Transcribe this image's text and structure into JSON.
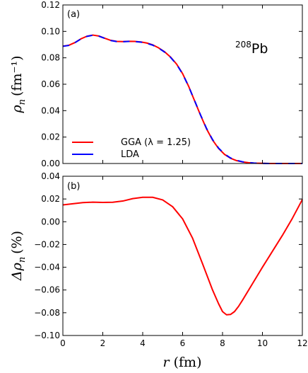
{
  "chart_data": [
    {
      "type": "line",
      "panel_label": "(a)",
      "annotation_sup": "208",
      "annotation_main": "Pb",
      "ylabel_sym": "ρ",
      "ylabel_sub": "n",
      "ylabel_unit": "(fm⁻¹)",
      "xlim": [
        0,
        12
      ],
      "ylim": [
        0,
        0.12
      ],
      "x_ticks": [
        "0",
        "2",
        "4",
        "6",
        "8",
        "10",
        "12"
      ],
      "y_ticks": [
        "0.00",
        "0.02",
        "0.04",
        "0.06",
        "0.08",
        "0.10",
        "0.12"
      ],
      "legend_position": "lower-left",
      "series": [
        {
          "name": "GGA (λ = 1.25)",
          "color": "#ff0000",
          "x": [
            0,
            0.3,
            0.6,
            0.9,
            1.2,
            1.5,
            1.8,
            2.1,
            2.4,
            2.7,
            3.0,
            3.3,
            3.6,
            3.9,
            4.2,
            4.5,
            4.8,
            5.1,
            5.4,
            5.7,
            6.0,
            6.3,
            6.6,
            6.9,
            7.2,
            7.5,
            7.8,
            8.1,
            8.4,
            8.7,
            9.0,
            9.3,
            9.6,
            10.0,
            10.5,
            11.0,
            12.0
          ],
          "values": [
            0.0888,
            0.0895,
            0.0915,
            0.0943,
            0.0963,
            0.0972,
            0.0965,
            0.0948,
            0.0932,
            0.0924,
            0.0923,
            0.0925,
            0.0924,
            0.092,
            0.0912,
            0.0898,
            0.0875,
            0.0845,
            0.0805,
            0.0752,
            0.068,
            0.0585,
            0.0475,
            0.0365,
            0.0262,
            0.0178,
            0.0114,
            0.0069,
            0.004,
            0.0022,
            0.0012,
            0.0006,
            0.0003,
            0.0001,
            0.0,
            0.0,
            0.0
          ]
        },
        {
          "name": "LDA",
          "color": "#0000ff",
          "x": [
            0,
            0.3,
            0.6,
            0.9,
            1.2,
            1.5,
            1.8,
            2.1,
            2.4,
            2.7,
            3.0,
            3.3,
            3.6,
            3.9,
            4.2,
            4.5,
            4.8,
            5.1,
            5.4,
            5.7,
            6.0,
            6.3,
            6.6,
            6.9,
            7.2,
            7.5,
            7.8,
            8.1,
            8.4,
            8.7,
            9.0,
            9.3,
            9.6,
            10.0,
            10.5,
            11.0,
            12.0
          ],
          "values": [
            0.0887,
            0.0894,
            0.0914,
            0.0942,
            0.0962,
            0.0971,
            0.0964,
            0.0947,
            0.0931,
            0.0923,
            0.0922,
            0.0924,
            0.0923,
            0.0919,
            0.091,
            0.0896,
            0.0873,
            0.0843,
            0.0803,
            0.075,
            0.0678,
            0.0584,
            0.0476,
            0.0367,
            0.0265,
            0.0181,
            0.0117,
            0.0072,
            0.0042,
            0.0024,
            0.0013,
            0.0007,
            0.0003,
            0.0001,
            0.0,
            0.0,
            0.0
          ]
        }
      ]
    },
    {
      "type": "line",
      "panel_label": "(b)",
      "ylabel_sym": "Δρ",
      "ylabel_sub": "n",
      "ylabel_unit": "(%)",
      "xlabel_sym": "r",
      "xlabel_unit": "(fm)",
      "xlim": [
        0,
        12
      ],
      "ylim": [
        -0.1,
        0.04
      ],
      "x_ticks": [
        "0",
        "2",
        "4",
        "6",
        "8",
        "10",
        "12"
      ],
      "y_ticks": [
        "−0.10",
        "−0.08",
        "−0.06",
        "−0.04",
        "−0.02",
        "0.00",
        "0.02",
        "0.04"
      ],
      "series": [
        {
          "color": "#ff0000",
          "x": [
            0,
            0.5,
            1.0,
            1.5,
            2.0,
            2.5,
            3.0,
            3.5,
            4.0,
            4.5,
            5.0,
            5.5,
            6.0,
            6.5,
            7.0,
            7.5,
            7.8,
            8.0,
            8.2,
            8.4,
            8.6,
            8.8,
            9.0,
            9.5,
            10.0,
            10.5,
            11.0,
            11.5,
            12.0
          ],
          "values": [
            0.0148,
            0.0158,
            0.0168,
            0.0172,
            0.017,
            0.0171,
            0.0182,
            0.0203,
            0.0215,
            0.0215,
            0.0192,
            0.0132,
            0.0025,
            -0.0145,
            -0.037,
            -0.06,
            -0.072,
            -0.079,
            -0.0818,
            -0.0815,
            -0.079,
            -0.0745,
            -0.069,
            -0.0545,
            -0.04,
            -0.026,
            -0.012,
            0.003,
            0.0195
          ]
        }
      ]
    }
  ]
}
